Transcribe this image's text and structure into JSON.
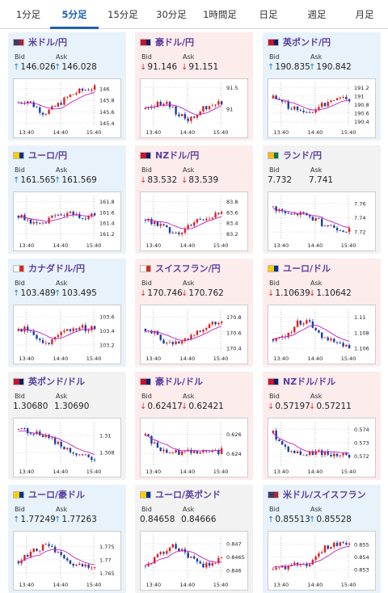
{
  "tabs": [
    "1分足",
    "5分足",
    "15分足",
    "30分足",
    "1時間足",
    "日足",
    "週足",
    "月足"
  ],
  "active_tab": 1,
  "labels": {
    "bid": "Bid",
    "ask": "Ask"
  },
  "colors": {
    "up_bg": "#e8f2fb",
    "down_bg": "#fcecec",
    "flat_bg": "#f2f2f2",
    "candle_up": "#e02020",
    "candle_down": "#1a3fa6",
    "ma": "#c020c0",
    "up_arrow": "#1f7fd8",
    "down_arrow": "#d33333"
  },
  "x_ticks": [
    "13:40",
    "14:40",
    "15:40"
  ],
  "cards": [
    {
      "pair": "米ドル/円",
      "flag": "us",
      "trend": "up",
      "bid": "146.026",
      "ask": "146.028",
      "bid_dir": "up",
      "ask_dir": "up",
      "y_ticks": [
        "146",
        "145.8",
        "145.6",
        "145.4"
      ],
      "ylim": [
        145.35,
        146.1
      ]
    },
    {
      "pair": "豪ドル/円",
      "flag": "au",
      "trend": "down",
      "bid": "91.146",
      "ask": "91.151",
      "bid_dir": "down",
      "ask_dir": "down",
      "y_ticks": [
        "91.5",
        "91"
      ],
      "ylim": [
        90.6,
        91.6
      ]
    },
    {
      "pair": "英ポンド/円",
      "flag": "gb",
      "trend": "up",
      "bid": "190.835",
      "ask": "190.842",
      "bid_dir": "up",
      "ask_dir": "up",
      "y_ticks": [
        "191.2",
        "191",
        "190.8",
        "190.6",
        "190.4"
      ],
      "ylim": [
        190.3,
        191.3
      ]
    },
    {
      "pair": "ユーロ/円",
      "flag": "eu",
      "trend": "up",
      "bid": "161.565",
      "ask": "161.569",
      "bid_dir": "up",
      "ask_dir": "up",
      "y_ticks": [
        "161.8",
        "161.6",
        "161.4",
        "161.2"
      ],
      "ylim": [
        161.1,
        161.9
      ]
    },
    {
      "pair": "NZドル/円",
      "flag": "nz",
      "trend": "down",
      "bid": "83.532",
      "ask": "83.539",
      "bid_dir": "down",
      "ask_dir": "down",
      "y_ticks": [
        "83.8",
        "83.6",
        "83.4",
        "83.2"
      ],
      "ylim": [
        83.1,
        83.9
      ]
    },
    {
      "pair": "ランド/円",
      "flag": "za",
      "trend": "flat",
      "bid": "7.732",
      "ask": "7.741",
      "bid_dir": "",
      "ask_dir": "",
      "y_ticks": [
        "7.76",
        "7.74",
        "7.72"
      ],
      "ylim": [
        7.71,
        7.77
      ]
    },
    {
      "pair": "カナダドル/円",
      "flag": "ca",
      "trend": "up",
      "bid": "103.489",
      "ask": "103.495",
      "bid_dir": "up",
      "ask_dir": "up",
      "y_ticks": [
        "103.6",
        "103.4",
        "103.2"
      ],
      "ylim": [
        103.1,
        103.7
      ]
    },
    {
      "pair": "スイスフラン/円",
      "flag": "ch",
      "trend": "down",
      "bid": "170.746",
      "ask": "170.762",
      "bid_dir": "down",
      "ask_dir": "down",
      "y_ticks": [
        "170.8",
        "170.6",
        "170.4"
      ],
      "ylim": [
        170.35,
        170.9
      ]
    },
    {
      "pair": "ユーロ/ドル",
      "flag": "eu",
      "trend": "down",
      "bid": "1.10639",
      "ask": "1.10642",
      "bid_dir": "down",
      "ask_dir": "down",
      "y_ticks": [
        "1.11",
        "1.108",
        "1.106"
      ],
      "ylim": [
        1.1055,
        1.111
      ]
    },
    {
      "pair": "英ポンド/ドル",
      "flag": "gb",
      "trend": "flat",
      "bid": "1.30680",
      "ask": "1.30690",
      "bid_dir": "",
      "ask_dir": "",
      "y_ticks": [
        "1.31",
        "1.308"
      ],
      "ylim": [
        1.3065,
        1.3115
      ]
    },
    {
      "pair": "豪ドル/ドル",
      "flag": "au",
      "trend": "down",
      "bid": "0.62417",
      "ask": "0.62421",
      "bid_dir": "down",
      "ask_dir": "down",
      "y_ticks": [
        "0.626",
        "0.624"
      ],
      "ylim": [
        0.6228,
        0.6272
      ]
    },
    {
      "pair": "NZドル/ドル",
      "flag": "nz",
      "trend": "down",
      "bid": "0.57197",
      "ask": "0.57211",
      "bid_dir": "down",
      "ask_dir": "down",
      "y_ticks": [
        "0.574",
        "0.573",
        "0.572"
      ],
      "ylim": [
        0.5713,
        0.5745
      ]
    },
    {
      "pair": "ユーロ/豪ドル",
      "flag": "eu",
      "trend": "up",
      "bid": "1.77249",
      "ask": "1.77263",
      "bid_dir": "up",
      "ask_dir": "up",
      "y_ticks": [
        "1.775",
        "1.77",
        "1.765"
      ],
      "ylim": [
        1.763,
        1.779
      ]
    },
    {
      "pair": "ユーロ/英ポンド",
      "flag": "eu",
      "trend": "flat",
      "bid": "0.84658",
      "ask": "0.84666",
      "bid_dir": "",
      "ask_dir": "",
      "y_ticks": [
        "0.847",
        "0.8465",
        "0.846"
      ],
      "ylim": [
        0.8457,
        0.8473
      ]
    },
    {
      "pair": "米ドル/スイスフラン",
      "flag": "us",
      "trend": "up",
      "bid": "0.85513",
      "ask": "0.85528",
      "bid_dir": "up",
      "ask_dir": "up",
      "y_ticks": [
        "0.855",
        "0.854",
        "0.853"
      ],
      "ylim": [
        0.8523,
        0.8557
      ]
    }
  ]
}
